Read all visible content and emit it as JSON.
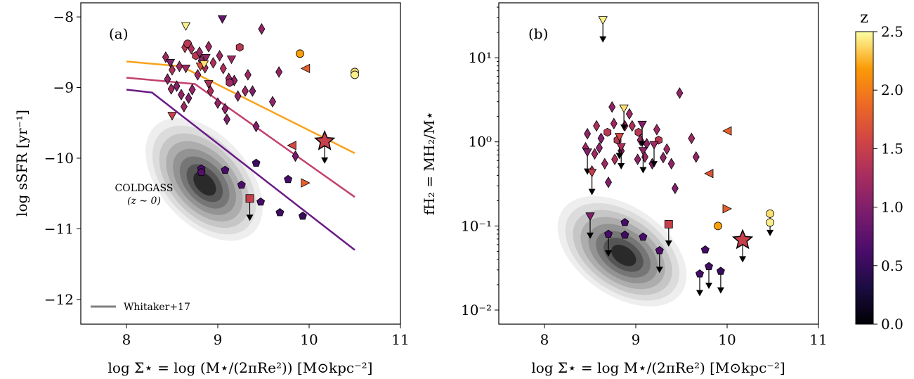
{
  "chart_data": [
    {
      "type": "scatter",
      "panel_label": "(a)",
      "xlabel": "log Σ⋆ = log (M⋆/(2πRe²)) [M⊙kpc⁻²]",
      "ylabel": "log sSFR [yr⁻¹]",
      "xlim": [
        7.5,
        11
      ],
      "ylim": [
        -12.35,
        -7.8
      ],
      "xticks": [
        "8",
        "9",
        "10",
        "11"
      ],
      "yticks": [
        "−8",
        "−9",
        "−10",
        "−11",
        "−12"
      ],
      "xtick_values": [
        8,
        9,
        10,
        11
      ],
      "ytick_values": [
        -8,
        -9,
        -10,
        -11,
        -12
      ],
      "grid": false,
      "legend": {
        "position": "bottom-left",
        "entries": [
          "Whitaker+17"
        ]
      },
      "annotations": [
        "COLDGASS",
        "(z ∼ 0)"
      ],
      "density_contours": {
        "center": [
          8.85,
          -10.3
        ],
        "levels": 8
      },
      "lines": [
        {
          "color": "#f7a21b",
          "x": [
            8.0,
            8.6,
            10.5
          ],
          "y": [
            -8.63,
            -8.7,
            -9.93
          ]
        },
        {
          "color": "#c2416e",
          "x": [
            8.0,
            8.75,
            10.5
          ],
          "y": [
            -8.86,
            -8.95,
            -10.55
          ]
        },
        {
          "color": "#6a1a86",
          "x": [
            8.0,
            8.28,
            10.5
          ],
          "y": [
            -9.03,
            -9.07,
            -11.3
          ]
        }
      ],
      "points": [
        {
          "x": 8.43,
          "y": -8.57,
          "z": 1.2,
          "marker": "diamond"
        },
        {
          "x": 8.5,
          "y": -8.75,
          "z": 1.3,
          "marker": "diamond"
        },
        {
          "x": 8.58,
          "y": -8.7,
          "z": 1.2,
          "marker": "diamond"
        },
        {
          "x": 8.64,
          "y": -8.43,
          "z": 1.4,
          "marker": "diamond"
        },
        {
          "x": 8.67,
          "y": -8.38,
          "z": 1.4,
          "marker": "circle"
        },
        {
          "x": 8.71,
          "y": -8.45,
          "z": 1.3,
          "marker": "diamond"
        },
        {
          "x": 8.76,
          "y": -8.55,
          "z": 1.4,
          "marker": "hexagon"
        },
        {
          "x": 8.8,
          "y": -8.5,
          "z": 1.2,
          "marker": "diamond"
        },
        {
          "x": 8.82,
          "y": -8.62,
          "z": 1.1,
          "marker": "diamond"
        },
        {
          "x": 8.86,
          "y": -8.72,
          "z": 1.3,
          "marker": "diamond"
        },
        {
          "x": 8.9,
          "y": -8.42,
          "z": 1.2,
          "marker": "diamond"
        },
        {
          "x": 8.95,
          "y": -8.65,
          "z": 1.3,
          "marker": "diamond"
        },
        {
          "x": 9.02,
          "y": -8.55,
          "z": 1.2,
          "marker": "diamond"
        },
        {
          "x": 9.06,
          "y": -8.73,
          "z": 1.3,
          "marker": "diamond"
        },
        {
          "x": 9.12,
          "y": -8.87,
          "z": 1.2,
          "marker": "diamond"
        },
        {
          "x": 9.18,
          "y": -8.9,
          "z": 1.1,
          "marker": "diamond"
        },
        {
          "x": 9.33,
          "y": -8.82,
          "z": 1.2,
          "marker": "diamond"
        },
        {
          "x": 9.48,
          "y": -8.17,
          "z": 1.1,
          "marker": "diamond"
        },
        {
          "x": 9.38,
          "y": -9.05,
          "z": 1.0,
          "marker": "diamond"
        },
        {
          "x": 9.67,
          "y": -8.78,
          "z": 1.1,
          "marker": "diamond"
        },
        {
          "x": 9.6,
          "y": -9.2,
          "z": 1.1,
          "marker": "diamond"
        },
        {
          "x": 8.45,
          "y": -8.88,
          "z": 1.1,
          "marker": "diamond"
        },
        {
          "x": 8.49,
          "y": -9.02,
          "z": 1.2,
          "marker": "diamond"
        },
        {
          "x": 8.55,
          "y": -8.98,
          "z": 1.0,
          "marker": "diamond"
        },
        {
          "x": 8.6,
          "y": -9.1,
          "z": 1.1,
          "marker": "diamond"
        },
        {
          "x": 8.63,
          "y": -9.27,
          "z": 1.2,
          "marker": "diamond"
        },
        {
          "x": 8.68,
          "y": -9.15,
          "z": 1.0,
          "marker": "diamond"
        },
        {
          "x": 8.72,
          "y": -9.03,
          "z": 1.1,
          "marker": "diamond"
        },
        {
          "x": 8.78,
          "y": -8.82,
          "z": 1.2,
          "marker": "diamond"
        },
        {
          "x": 8.92,
          "y": -9.05,
          "z": 1.3,
          "marker": "diamond"
        },
        {
          "x": 9.0,
          "y": -9.22,
          "z": 1.1,
          "marker": "diamond"
        },
        {
          "x": 9.08,
          "y": -9.3,
          "z": 1.1,
          "marker": "diamond"
        },
        {
          "x": 9.1,
          "y": -9.45,
          "z": 1.0,
          "marker": "diamond"
        },
        {
          "x": 9.22,
          "y": -9.12,
          "z": 1.1,
          "marker": "diamond"
        },
        {
          "x": 9.3,
          "y": -9.05,
          "z": 1.2,
          "marker": "diamond"
        },
        {
          "x": 9.42,
          "y": -9.55,
          "z": 1.0,
          "marker": "diamond"
        },
        {
          "x": 9.85,
          "y": -9.97,
          "z": 0.9,
          "marker": "diamond"
        },
        {
          "x": 8.81,
          "y": -8.7,
          "z": 1.7,
          "marker": "triangle_down"
        },
        {
          "x": 9.05,
          "y": -8.03,
          "z": 0.8,
          "marker": "triangle_down"
        },
        {
          "x": 8.5,
          "y": -9.4,
          "z": 1.5,
          "marker": "triangle_down"
        },
        {
          "x": 8.48,
          "y": -8.65,
          "z": 1.0,
          "marker": "triangle_down"
        },
        {
          "x": 8.65,
          "y": -8.73,
          "z": 1.2,
          "marker": "triangle_down"
        },
        {
          "x": 8.87,
          "y": -8.58,
          "z": 1.1,
          "marker": "triangle_down"
        },
        {
          "x": 9.15,
          "y": -8.6,
          "z": 1.2,
          "marker": "triangle_down"
        },
        {
          "x": 8.9,
          "y": -8.95,
          "z": 1.3,
          "marker": "triangle_down"
        },
        {
          "x": 8.65,
          "y": -8.13,
          "z": 2.45,
          "marker": "triangle_down"
        },
        {
          "x": 8.85,
          "y": -8.67,
          "z": 2.4,
          "marker": "triangle_down"
        },
        {
          "x": 9.13,
          "y": -8.93,
          "z": 1.2,
          "marker": "hexagon"
        },
        {
          "x": 9.24,
          "y": -8.43,
          "z": 1.4,
          "marker": "hexagon"
        },
        {
          "x": 9.9,
          "y": -8.52,
          "z": 2.2,
          "marker": "circle"
        },
        {
          "x": 10.5,
          "y": -8.78,
          "z": 2.4,
          "marker": "circle"
        },
        {
          "x": 10.5,
          "y": -8.82,
          "z": 2.45,
          "marker": "circle"
        },
        {
          "x": 9.96,
          "y": -8.73,
          "z": 1.8,
          "marker": "triangle_left"
        },
        {
          "x": 9.81,
          "y": -9.82,
          "z": 1.6,
          "marker": "triangle_left"
        },
        {
          "x": 9.96,
          "y": -10.35,
          "z": 1.8,
          "marker": "triangle_right"
        },
        {
          "x": 9.35,
          "y": -10.57,
          "z": 1.5,
          "marker": "square",
          "upper_limit": true
        },
        {
          "x": 10.17,
          "y": -9.76,
          "z": 1.5,
          "marker": "star",
          "upper_limit": true
        },
        {
          "x": 8.82,
          "y": -10.15,
          "z": 0.6,
          "marker": "pentagon"
        },
        {
          "x": 8.82,
          "y": -10.2,
          "z": 0.7,
          "marker": "pentagon"
        },
        {
          "x": 9.08,
          "y": -10.17,
          "z": 0.6,
          "marker": "pentagon"
        },
        {
          "x": 9.42,
          "y": -10.07,
          "z": 0.55,
          "marker": "pentagon"
        },
        {
          "x": 9.26,
          "y": -10.38,
          "z": 0.65,
          "marker": "pentagon"
        },
        {
          "x": 9.77,
          "y": -10.3,
          "z": 0.6,
          "marker": "pentagon"
        },
        {
          "x": 9.68,
          "y": -10.77,
          "z": 0.55,
          "marker": "pentagon"
        },
        {
          "x": 9.93,
          "y": -10.82,
          "z": 0.5,
          "marker": "pentagon"
        },
        {
          "x": 9.47,
          "y": -10.62,
          "z": 0.6,
          "marker": "pentagon"
        }
      ]
    },
    {
      "type": "scatter",
      "panel_label": "(b)",
      "xlabel": "log Σ⋆ = log M⋆/(2πRe²) [M⊙kpc⁻²]",
      "ylabel": "fH₂ = MH₂/M⋆",
      "yscale": "log",
      "xlim": [
        7.5,
        11
      ],
      "ylim": [
        0.0068,
        45
      ],
      "xticks": [
        "8",
        "9",
        "10",
        "11"
      ],
      "yticks": [
        "10⁻²",
        "10⁻¹",
        "10⁰",
        "10¹"
      ],
      "xtick_values": [
        8,
        9,
        10,
        11
      ],
      "ytick_values": [
        0.01,
        0.1,
        1,
        10
      ],
      "grid": false,
      "density_contours": {
        "center": [
          8.85,
          0.05
        ],
        "levels": 8
      },
      "points": [
        {
          "x": 8.45,
          "y": 0.85,
          "z": 1.2,
          "marker": "diamond"
        },
        {
          "x": 8.47,
          "y": 1.25,
          "z": 1.1,
          "marker": "diamond"
        },
        {
          "x": 8.55,
          "y": 0.72,
          "z": 1.2,
          "marker": "diamond"
        },
        {
          "x": 8.57,
          "y": 1.55,
          "z": 1.3,
          "marker": "diamond"
        },
        {
          "x": 8.62,
          "y": 1.1,
          "z": 1.0,
          "marker": "diamond"
        },
        {
          "x": 8.66,
          "y": 0.55,
          "z": 1.2,
          "marker": "diamond"
        },
        {
          "x": 8.69,
          "y": 1.3,
          "z": 1.4,
          "marker": "hexagon"
        },
        {
          "x": 8.74,
          "y": 2.6,
          "z": 1.1,
          "marker": "diamond"
        },
        {
          "x": 8.76,
          "y": 1.65,
          "z": 1.2,
          "marker": "diamond"
        },
        {
          "x": 8.8,
          "y": 1.05,
          "z": 1.4,
          "marker": "hexagon"
        },
        {
          "x": 8.84,
          "y": 0.78,
          "z": 1.1,
          "marker": "diamond"
        },
        {
          "x": 8.88,
          "y": 1.55,
          "z": 1.2,
          "marker": "diamond"
        },
        {
          "x": 8.93,
          "y": 2.15,
          "z": 1.2,
          "marker": "diamond"
        },
        {
          "x": 8.96,
          "y": 1.55,
          "z": 1.3,
          "marker": "diamond"
        },
        {
          "x": 9.03,
          "y": 1.3,
          "z": 1.4,
          "marker": "hexagon"
        },
        {
          "x": 9.05,
          "y": 1.05,
          "z": 1.2,
          "marker": "diamond"
        },
        {
          "x": 9.12,
          "y": 0.95,
          "z": 1.1,
          "marker": "diamond"
        },
        {
          "x": 9.18,
          "y": 0.55,
          "z": 1.0,
          "marker": "diamond"
        },
        {
          "x": 9.23,
          "y": 1.4,
          "z": 1.2,
          "marker": "diamond"
        },
        {
          "x": 9.25,
          "y": 1.05,
          "z": 1.4,
          "marker": "hexagon"
        },
        {
          "x": 9.3,
          "y": 0.65,
          "z": 1.1,
          "marker": "diamond"
        },
        {
          "x": 9.34,
          "y": 0.82,
          "z": 1.2,
          "marker": "diamond"
        },
        {
          "x": 9.39,
          "y": 0.55,
          "z": 1.1,
          "marker": "diamond"
        },
        {
          "x": 9.43,
          "y": 0.28,
          "z": 1.0,
          "marker": "diamond"
        },
        {
          "x": 9.48,
          "y": 3.8,
          "z": 1.1,
          "marker": "diamond"
        },
        {
          "x": 9.61,
          "y": 1.1,
          "z": 1.2,
          "marker": "diamond"
        },
        {
          "x": 9.66,
          "y": 0.66,
          "z": 1.1,
          "marker": "diamond"
        },
        {
          "x": 8.52,
          "y": 0.45,
          "z": 1.2,
          "marker": "diamond"
        },
        {
          "x": 8.6,
          "y": 0.85,
          "z": 1.1,
          "marker": "diamond"
        },
        {
          "x": 8.7,
          "y": 0.33,
          "z": 1.0,
          "marker": "diamond"
        },
        {
          "x": 8.77,
          "y": 0.62,
          "z": 1.3,
          "marker": "diamond"
        },
        {
          "x": 9.02,
          "y": 0.62,
          "z": 1.1,
          "marker": "diamond"
        },
        {
          "x": 9.1,
          "y": 0.66,
          "z": 1.2,
          "marker": "diamond"
        },
        {
          "x": 8.87,
          "y": 2.5,
          "z": 2.4,
          "marker": "triangle_down",
          "upper_limit": true
        },
        {
          "x": 8.64,
          "y": 28,
          "z": 2.45,
          "marker": "triangle_down",
          "upper_limit": true
        },
        {
          "x": 8.82,
          "y": 1.15,
          "z": 1.6,
          "marker": "triangle_down",
          "upper_limit": true
        },
        {
          "x": 8.84,
          "y": 0.87,
          "z": 1.3,
          "marker": "triangle_down",
          "upper_limit": true
        },
        {
          "x": 9.07,
          "y": 1.6,
          "z": 1.0,
          "marker": "triangle_down",
          "upper_limit": true
        },
        {
          "x": 9.2,
          "y": 0.92,
          "z": 1.2,
          "marker": "triangle_down",
          "upper_limit": true
        },
        {
          "x": 9.08,
          "y": 0.78,
          "z": 1.1,
          "marker": "triangle_down",
          "upper_limit": true
        },
        {
          "x": 8.47,
          "y": 0.75,
          "z": 1.0,
          "marker": "triangle_down",
          "upper_limit": true
        },
        {
          "x": 8.52,
          "y": 0.43,
          "z": 1.5,
          "marker": "triangle_down",
          "upper_limit": true
        },
        {
          "x": 8.5,
          "y": 0.13,
          "z": 1.0,
          "marker": "triangle_down",
          "upper_limit": true
        },
        {
          "x": 10.47,
          "y": 0.14,
          "z": 2.4,
          "marker": "circle",
          "upper_limit": true
        },
        {
          "x": 10.47,
          "y": 0.11,
          "z": 2.45,
          "marker": "circle"
        },
        {
          "x": 9.9,
          "y": 0.1,
          "z": 2.2,
          "marker": "circle"
        },
        {
          "x": 10.0,
          "y": 1.35,
          "z": 1.8,
          "marker": "triangle_left"
        },
        {
          "x": 9.8,
          "y": 0.42,
          "z": 1.7,
          "marker": "triangle_left"
        },
        {
          "x": 10.0,
          "y": 0.16,
          "z": 1.8,
          "marker": "triangle_right"
        },
        {
          "x": 9.36,
          "y": 0.105,
          "z": 1.5,
          "marker": "square",
          "upper_limit": true
        },
        {
          "x": 10.17,
          "y": 0.068,
          "z": 1.5,
          "marker": "star",
          "upper_limit": true
        },
        {
          "x": 8.88,
          "y": 0.11,
          "z": 0.6,
          "marker": "pentagon"
        },
        {
          "x": 8.88,
          "y": 0.078,
          "z": 0.55,
          "marker": "pentagon"
        },
        {
          "x": 8.7,
          "y": 0.08,
          "z": 0.6,
          "marker": "pentagon",
          "upper_limit": true
        },
        {
          "x": 9.08,
          "y": 0.074,
          "z": 0.6,
          "marker": "pentagon"
        },
        {
          "x": 9.26,
          "y": 0.051,
          "z": 0.65,
          "marker": "pentagon",
          "upper_limit": true
        },
        {
          "x": 9.76,
          "y": 0.052,
          "z": 0.6,
          "marker": "pentagon"
        },
        {
          "x": 9.8,
          "y": 0.033,
          "z": 0.55,
          "marker": "pentagon",
          "upper_limit": true
        },
        {
          "x": 9.93,
          "y": 0.029,
          "z": 0.5,
          "marker": "pentagon",
          "upper_limit": true
        },
        {
          "x": 9.7,
          "y": 0.027,
          "z": 0.6,
          "marker": "pentagon",
          "upper_limit": true
        }
      ]
    }
  ],
  "colorbar": {
    "label": "z",
    "range": [
      0.0,
      2.5
    ],
    "ticks": [
      "0.0",
      "0.5",
      "1.0",
      "1.5",
      "2.0",
      "2.5"
    ],
    "tick_values": [
      0.0,
      0.5,
      1.0,
      1.5,
      2.0,
      2.5
    ],
    "colormap": "inferno"
  }
}
